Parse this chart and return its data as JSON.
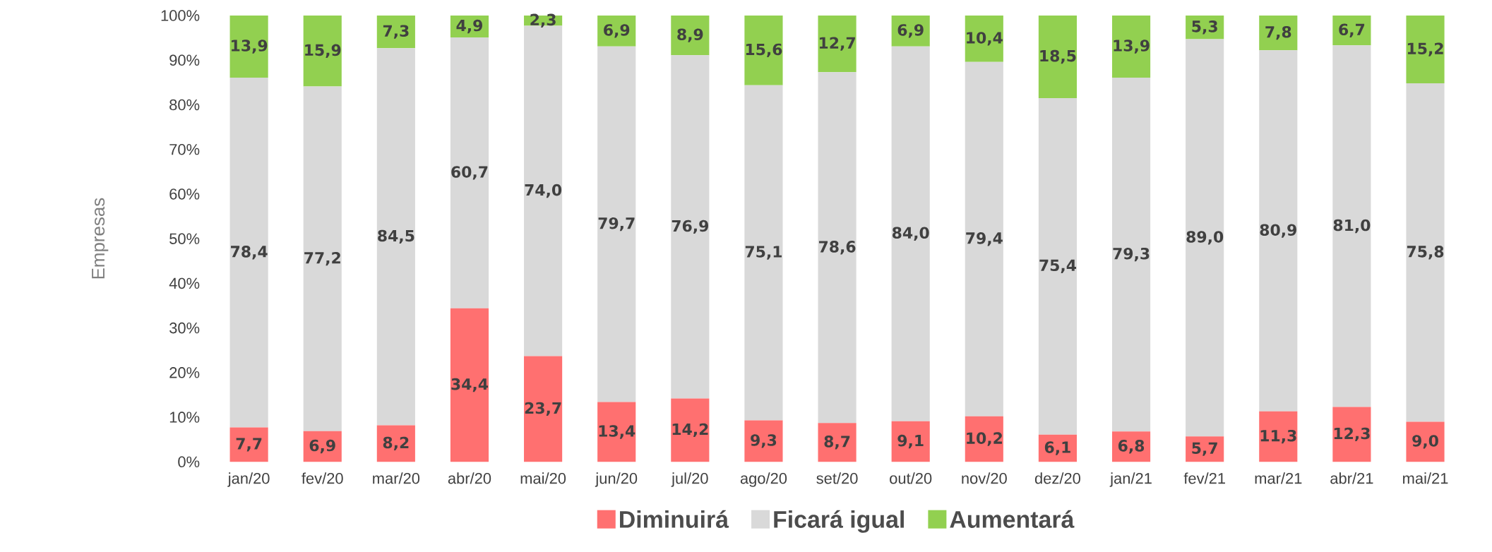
{
  "chart_data": {
    "type": "bar",
    "stacked": true,
    "ylabel": "Empresas",
    "legend": "bottom",
    "categories": [
      "jan/20",
      "fev/20",
      "mar/20",
      "abr/20",
      "mai/20",
      "jun/20",
      "jul/20",
      "ago/20",
      "set/20",
      "out/20",
      "nov/20",
      "dez/20",
      "jan/21",
      "fev/21",
      "mar/21",
      "abr/21",
      "mai/21"
    ],
    "ylim": [
      0,
      100
    ],
    "yticks": [
      {
        "value": 0,
        "label": "0%"
      },
      {
        "value": 10,
        "label": "10%"
      },
      {
        "value": 20,
        "label": "20%"
      },
      {
        "value": 30,
        "label": "30%"
      },
      {
        "value": 40,
        "label": "40%"
      },
      {
        "value": 50,
        "label": "50%"
      },
      {
        "value": 60,
        "label": "60%"
      },
      {
        "value": 70,
        "label": "70%"
      },
      {
        "value": 80,
        "label": "80%"
      },
      {
        "value": 90,
        "label": "90%"
      },
      {
        "value": 100,
        "label": "100%"
      }
    ],
    "series": [
      {
        "name": "Diminuirá",
        "color": "#ff7070",
        "values": [
          7.7,
          6.9,
          8.2,
          34.4,
          23.7,
          13.4,
          14.2,
          9.3,
          8.7,
          9.1,
          10.2,
          6.1,
          6.8,
          5.7,
          11.3,
          12.3,
          9.0
        ],
        "value_labels": [
          "7,7",
          "6,9",
          "8,2",
          "34,4",
          "23,7",
          "13,4",
          "14,2",
          "9,3",
          "8,7",
          "9,1",
          "10,2",
          "6,1",
          "6,8",
          "5,7",
          "11,3",
          "12,3",
          "9,0"
        ]
      },
      {
        "name": "Ficará igual",
        "color": "#d9d9d9",
        "values": [
          78.4,
          77.2,
          84.5,
          60.7,
          74.0,
          79.7,
          76.9,
          75.1,
          78.6,
          84.0,
          79.4,
          75.4,
          79.3,
          89.0,
          80.9,
          81.0,
          75.8
        ],
        "value_labels": [
          "78,4",
          "77,2",
          "84,5",
          "60,7",
          "74,0",
          "79,7",
          "76,9",
          "75,1",
          "78,6",
          "84,0",
          "79,4",
          "75,4",
          "79,3",
          "89,0",
          "80,9",
          "81,0",
          "75,8"
        ]
      },
      {
        "name": "Aumentará",
        "color": "#92d050",
        "values": [
          13.9,
          15.9,
          7.3,
          4.9,
          2.3,
          6.9,
          8.9,
          15.6,
          12.7,
          6.9,
          10.4,
          18.5,
          13.9,
          5.3,
          7.8,
          6.7,
          15.2
        ],
        "value_labels": [
          "13,9",
          "15,9",
          "7,3",
          "4,9",
          "2,3",
          "6,9",
          "8,9",
          "15,6",
          "12,7",
          "6,9",
          "10,4",
          "18,5",
          "13,9",
          "5,3",
          "7,8",
          "6,7",
          "15,2"
        ]
      }
    ]
  }
}
